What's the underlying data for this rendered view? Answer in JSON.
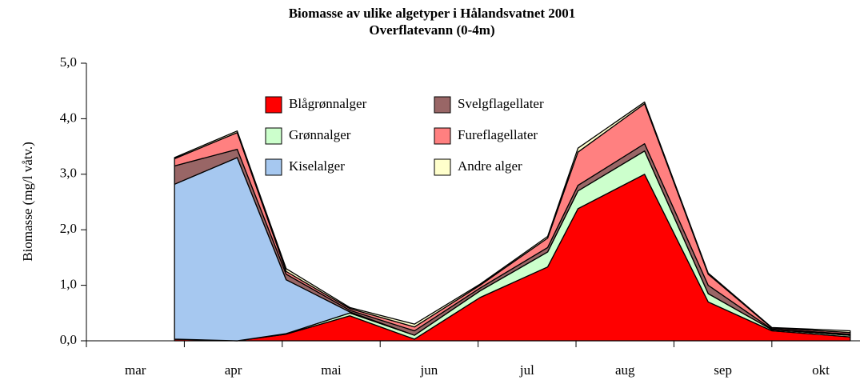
{
  "chart_data": {
    "type": "stacked-area",
    "title": "Biomasse av ulike algetyper i Hålandsvatnet 2001",
    "subtitle": "Overflatevann (0-4m)",
    "y_label": "Biomasse (mg/l våtv.)",
    "categories": [
      "mar",
      "apr",
      "mai",
      "jun",
      "jul",
      "aug",
      "sep",
      "okt"
    ],
    "x": [
      0.9,
      1.54,
      2.04,
      2.69,
      3.35,
      4.02,
      4.71,
      5.02,
      5.7,
      6.35,
      7.0,
      7.8
    ],
    "xlim": [
      0,
      7.9
    ],
    "xticks": [
      0,
      1,
      2,
      3,
      4,
      5,
      6,
      7
    ],
    "ylim": [
      0,
      5
    ],
    "yticks": [
      {
        "value": 0,
        "label": "0,0"
      },
      {
        "value": 1,
        "label": "1,0"
      },
      {
        "value": 2,
        "label": "2,0"
      },
      {
        "value": 3,
        "label": "3,0"
      },
      {
        "value": 4,
        "label": "4,0"
      },
      {
        "value": 5,
        "label": "5,0"
      }
    ],
    "series": [
      {
        "name": "Blågrønnalger",
        "color": "#ff0000",
        "values": [
          0.03,
          0,
          0.12,
          0.45,
          0.03,
          0.78,
          1.33,
          2.38,
          3.0,
          0.7,
          0.18,
          0.07
        ]
      },
      {
        "name": "Grønnalger",
        "color": "#ccffcc",
        "values": [
          0,
          0,
          0.01,
          0.05,
          0.07,
          0.12,
          0.27,
          0.32,
          0.42,
          0.15,
          0.02,
          0.03
        ]
      },
      {
        "name": "Kiselalger",
        "color": "#a6c8f0",
        "values": [
          2.79,
          3.3,
          0.97,
          0.02,
          0,
          0,
          0,
          0,
          0,
          0,
          0,
          0
        ]
      },
      {
        "name": "Svelgflagellater",
        "color": "#996666",
        "values": [
          0.33,
          0.15,
          0.1,
          0.03,
          0.08,
          0.05,
          0.08,
          0.1,
          0.13,
          0.15,
          0.01,
          0.02
        ]
      },
      {
        "name": "Fureflagellater",
        "color": "#ff8080",
        "values": [
          0.13,
          0.3,
          0.05,
          0.03,
          0.07,
          0.05,
          0.17,
          0.6,
          0.72,
          0.2,
          0.02,
          0.03
        ]
      },
      {
        "name": "Andre alger",
        "color": "#ffffcc",
        "values": [
          0.02,
          0.03,
          0.05,
          0.02,
          0.05,
          0.02,
          0.03,
          0.07,
          0.03,
          0.02,
          0.01,
          0.03
        ]
      }
    ]
  }
}
